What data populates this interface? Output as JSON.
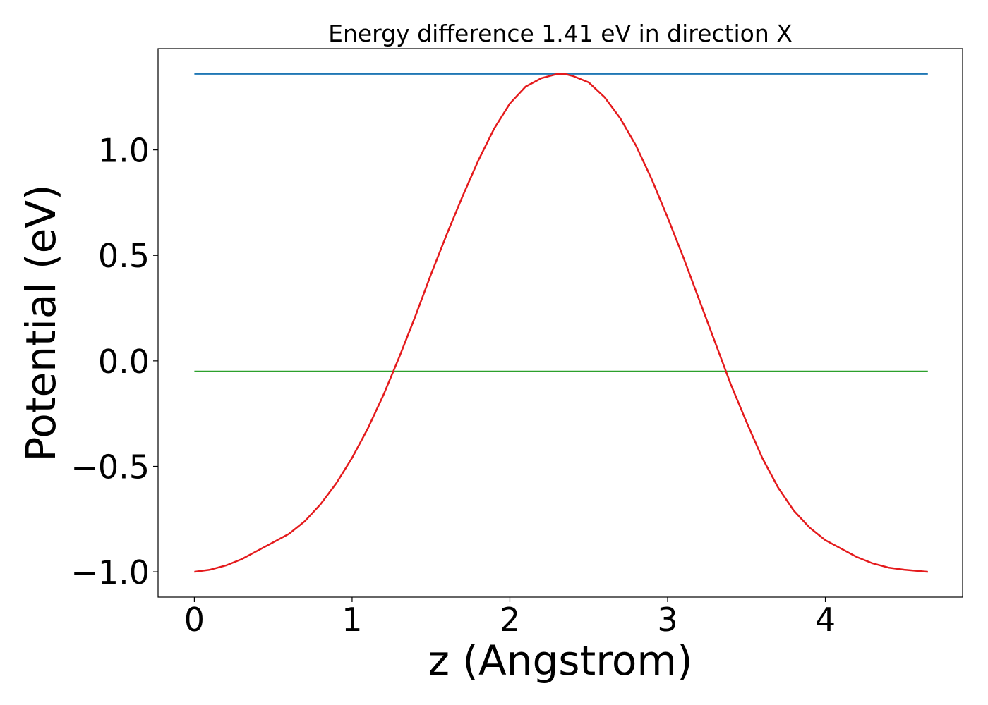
{
  "chart_data": {
    "type": "line",
    "title": "Energy difference 1.41 eV in direction X",
    "xlabel": "z (Angstrom)",
    "ylabel": "Potential (eV)",
    "xlim": [
      -0.23,
      4.87
    ],
    "ylim": [
      -1.12,
      1.48
    ],
    "xticks": [
      0,
      1,
      2,
      3,
      4
    ],
    "xtick_labels": [
      "0",
      "1",
      "2",
      "3",
      "4"
    ],
    "yticks": [
      -1.0,
      -0.5,
      0.0,
      0.5,
      1.0
    ],
    "ytick_labels": [
      "−1.0",
      "−0.5",
      "0.0",
      "0.5",
      "1.0"
    ],
    "grid": false,
    "series": [
      {
        "color": "#1f77b4",
        "x": [
          0,
          4.65
        ],
        "y": [
          1.36,
          1.36
        ]
      },
      {
        "color": "#2ca02c",
        "x": [
          0,
          4.65
        ],
        "y": [
          -0.05,
          -0.05
        ]
      },
      {
        "color": "#e41a1c",
        "x": [
          0,
          0.1,
          0.2,
          0.3,
          0.4,
          0.5,
          0.6,
          0.7,
          0.8,
          0.9,
          1.0,
          1.1,
          1.2,
          1.3,
          1.4,
          1.5,
          1.6,
          1.7,
          1.8,
          1.9,
          2.0,
          2.1,
          2.2,
          2.3,
          2.35,
          2.4,
          2.5,
          2.6,
          2.7,
          2.8,
          2.9,
          3.0,
          3.1,
          3.2,
          3.3,
          3.4,
          3.5,
          3.6,
          3.7,
          3.8,
          3.9,
          4.0,
          4.1,
          4.2,
          4.3,
          4.4,
          4.5,
          4.65
        ],
        "y": [
          -1.0,
          -0.99,
          -0.97,
          -0.94,
          -0.9,
          -0.86,
          -0.82,
          -0.76,
          -0.68,
          -0.58,
          -0.46,
          -0.32,
          -0.16,
          0.02,
          0.21,
          0.41,
          0.6,
          0.78,
          0.95,
          1.1,
          1.22,
          1.3,
          1.34,
          1.36,
          1.36,
          1.35,
          1.32,
          1.25,
          1.15,
          1.02,
          0.86,
          0.68,
          0.49,
          0.29,
          0.09,
          -0.11,
          -0.29,
          -0.46,
          -0.6,
          -0.71,
          -0.79,
          -0.85,
          -0.89,
          -0.93,
          -0.96,
          -0.98,
          -0.99,
          -1.0
        ]
      }
    ]
  }
}
